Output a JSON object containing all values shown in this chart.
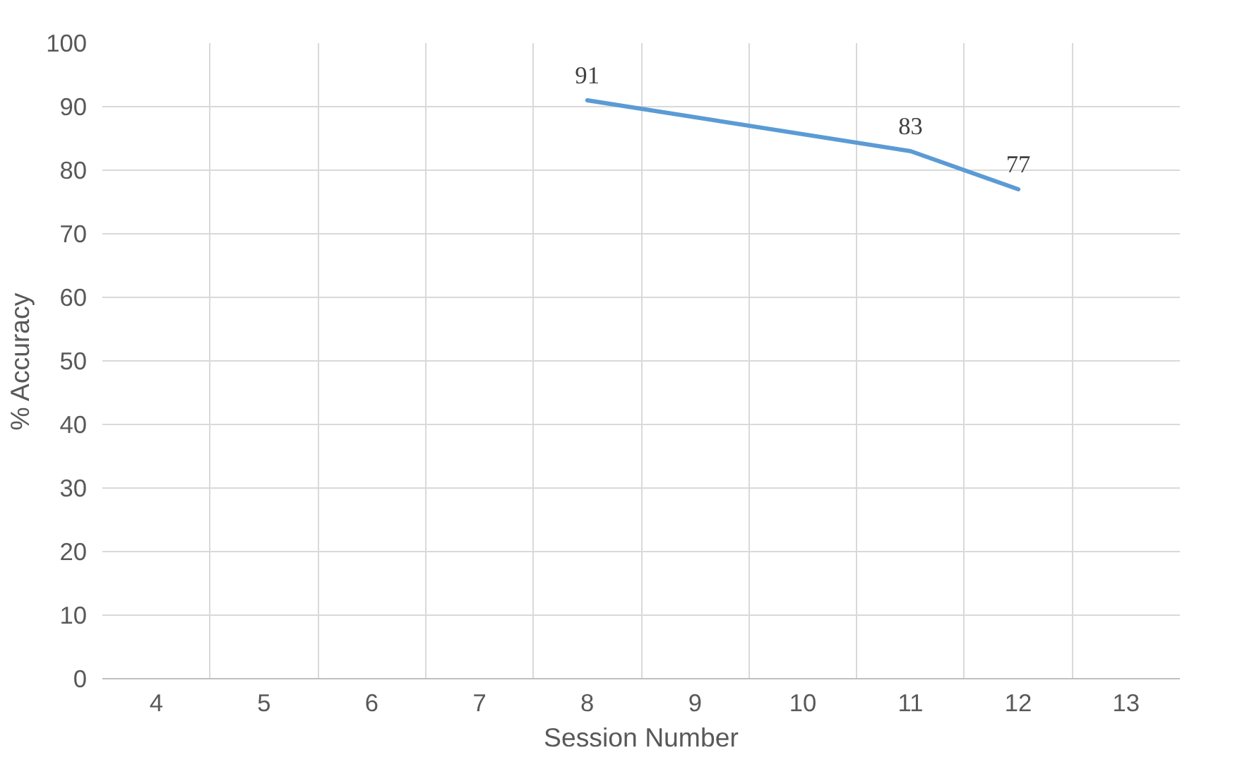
{
  "chart_data": {
    "type": "line",
    "xlabel": "Session Number",
    "ylabel": "% Accuracy",
    "categories": [
      "4",
      "5",
      "6",
      "7",
      "8",
      "9",
      "10",
      "11",
      "12",
      "13"
    ],
    "series": [
      {
        "color": "#5b9bd5",
        "x": [
          "8",
          "11",
          "12"
        ],
        "values": [
          91,
          83,
          77
        ]
      }
    ],
    "ylim": [
      0,
      100
    ],
    "yticks": [
      0,
      10,
      20,
      30,
      40,
      50,
      60,
      70,
      80,
      90,
      100
    ],
    "grid": true,
    "data_labels": true,
    "marker": "none",
    "line_style": "solid"
  }
}
